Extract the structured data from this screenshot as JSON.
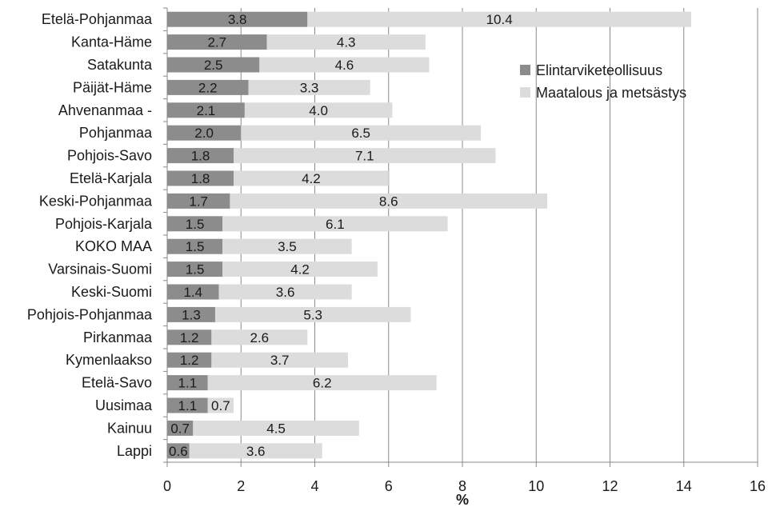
{
  "chart_data": {
    "type": "bar",
    "orientation": "horizontal",
    "stacked": true,
    "categories": [
      "Etelä-Pohjanmaa",
      "Kanta-Häme",
      "Satakunta",
      "Päijät-Häme",
      "Ahvenanmaa -",
      "Pohjanmaa",
      "Pohjois-Savo",
      "Etelä-Karjala",
      "Keski-Pohjanmaa",
      "Pohjois-Karjala",
      "KOKO MAA",
      "Varsinais-Suomi",
      "Keski-Suomi",
      "Pohjois-Pohjanmaa",
      "Pirkanmaa",
      "Kymenlaakso",
      "Etelä-Savo",
      "Uusimaa",
      "Kainuu",
      "Lappi"
    ],
    "series": [
      {
        "name": "Elintarviketeollisuus",
        "color": "#8c8c8c",
        "values": [
          3.8,
          2.7,
          2.5,
          2.2,
          2.1,
          2.0,
          1.8,
          1.8,
          1.7,
          1.5,
          1.5,
          1.5,
          1.4,
          1.3,
          1.2,
          1.2,
          1.1,
          1.1,
          0.7,
          0.6
        ]
      },
      {
        "name": "Maatalous ja metsästys",
        "color": "#dcdcdc",
        "values": [
          10.4,
          4.3,
          4.6,
          3.3,
          4.0,
          6.5,
          7.1,
          4.2,
          8.6,
          6.1,
          3.5,
          4.2,
          3.6,
          5.3,
          2.6,
          3.7,
          6.2,
          0.7,
          4.5,
          3.6
        ]
      }
    ],
    "xlabel": "%",
    "ylabel": "",
    "title": "",
    "xlim": [
      0,
      16
    ],
    "xticks": [
      0,
      2,
      4,
      6,
      8,
      10,
      12,
      14,
      16
    ],
    "grid": "vertical",
    "legend": "top-right"
  }
}
